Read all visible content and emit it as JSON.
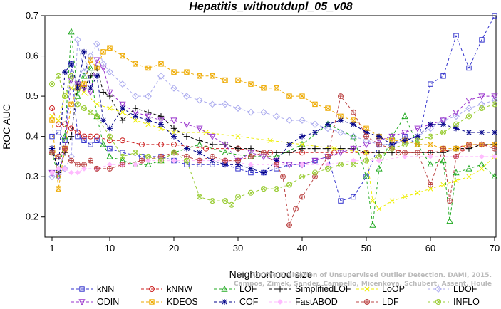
{
  "chart_data": {
    "type": "line",
    "title": "Hepatitis_withoutdupl_05_v08",
    "xlabel": "Neighborhood size",
    "ylabel": "ROC AUC",
    "xlim": [
      1,
      70
    ],
    "ylim": [
      0.15,
      0.7
    ],
    "xticks": [
      1,
      10,
      20,
      30,
      40,
      50,
      60,
      70
    ],
    "yticks": [
      0.2,
      0.3,
      0.4,
      0.5,
      0.6,
      0.7
    ],
    "grid": false,
    "legend_position": "bottom",
    "credit": [
      "Campos, Zimek, Sander, Campello, Micenkova, Schubert, Assent, Houle",
      "On the Evaluation of Unsupervised Outlier Detection. DAMI, 2015."
    ],
    "series": [
      {
        "name": "kNN",
        "color": "#3333cc",
        "marker": "square",
        "x": [
          1,
          2,
          3,
          4,
          5,
          6,
          7,
          8,
          10,
          12,
          15,
          18,
          20,
          22,
          24,
          26,
          28,
          30,
          32,
          34,
          36,
          38,
          40,
          42,
          44,
          46,
          48,
          50,
          52,
          54,
          56,
          58,
          60,
          62,
          64,
          66,
          68,
          70
        ],
        "y": [
          0.4,
          0.41,
          0.39,
          0.58,
          0.4,
          0.39,
          0.38,
          0.39,
          0.37,
          0.36,
          0.35,
          0.35,
          0.34,
          0.33,
          0.33,
          0.33,
          0.33,
          0.32,
          0.31,
          0.31,
          0.32,
          0.33,
          0.33,
          0.34,
          0.35,
          0.24,
          0.25,
          0.3,
          0.38,
          0.38,
          0.4,
          0.38,
          0.53,
          0.55,
          0.65,
          0.57,
          0.64,
          0.7
        ]
      },
      {
        "name": "kNNW",
        "color": "#cc2222",
        "marker": "circle",
        "x": [
          1,
          2,
          3,
          4,
          5,
          6,
          7,
          8,
          10,
          12,
          15,
          18,
          20,
          25,
          30,
          35,
          40,
          45,
          50,
          55,
          60,
          65,
          70
        ],
        "y": [
          0.47,
          0.43,
          0.43,
          0.42,
          0.41,
          0.4,
          0.4,
          0.4,
          0.39,
          0.39,
          0.38,
          0.38,
          0.38,
          0.37,
          0.37,
          0.36,
          0.36,
          0.36,
          0.36,
          0.36,
          0.36,
          0.37,
          0.38
        ]
      },
      {
        "name": "LOF",
        "color": "#22aa22",
        "marker": "triangle-up",
        "x": [
          1,
          2,
          3,
          4,
          5,
          6,
          7,
          8,
          9,
          10,
          12,
          14,
          16,
          18,
          20,
          24,
          28,
          32,
          36,
          40,
          44,
          48,
          50,
          51,
          52,
          54,
          56,
          58,
          60,
          62,
          63,
          64,
          66,
          68,
          70
        ],
        "y": [
          0.36,
          0.3,
          0.4,
          0.66,
          0.5,
          0.55,
          0.57,
          0.45,
          0.38,
          0.35,
          0.34,
          0.33,
          0.33,
          0.34,
          0.36,
          0.38,
          0.36,
          0.35,
          0.35,
          0.38,
          0.43,
          0.4,
          0.3,
          0.18,
          0.32,
          0.4,
          0.45,
          0.38,
          0.33,
          0.34,
          0.19,
          0.31,
          0.32,
          0.33,
          0.3
        ]
      },
      {
        "name": "SimplifiedLOF",
        "color": "#000000",
        "marker": "plus",
        "x": [
          1,
          2,
          3,
          4,
          5,
          6,
          7,
          8,
          9,
          10,
          12,
          14,
          16,
          18,
          20,
          22,
          24,
          26,
          28,
          30,
          32,
          34,
          36,
          38,
          40,
          42,
          44,
          46,
          48,
          50,
          52,
          54,
          56,
          58,
          60,
          62,
          64,
          66,
          68,
          70
        ],
        "y": [
          0.37,
          0.31,
          0.36,
          0.4,
          0.53,
          0.52,
          0.55,
          0.57,
          0.51,
          0.5,
          0.44,
          0.47,
          0.46,
          0.45,
          0.42,
          0.4,
          0.39,
          0.38,
          0.38,
          0.37,
          0.37,
          0.36,
          0.36,
          0.36,
          0.37,
          0.37,
          0.37,
          0.37,
          0.37,
          0.36,
          0.36,
          0.36,
          0.36,
          0.36,
          0.36,
          0.36,
          0.37,
          0.37,
          0.38,
          0.38
        ]
      },
      {
        "name": "LoOP",
        "color": "#eeee00",
        "marker": "cross",
        "x": [
          1,
          2,
          3,
          4,
          5,
          6,
          8,
          10,
          12,
          14,
          16,
          18,
          20,
          25,
          30,
          35,
          40,
          45,
          50,
          51,
          52,
          54,
          56,
          58,
          60,
          62,
          64,
          66,
          68,
          70
        ],
        "y": [
          0.45,
          0.44,
          0.5,
          0.52,
          0.52,
          0.51,
          0.48,
          0.47,
          0.46,
          0.44,
          0.43,
          0.42,
          0.41,
          0.41,
          0.4,
          0.39,
          0.38,
          0.37,
          0.36,
          0.24,
          0.22,
          0.24,
          0.25,
          0.26,
          0.27,
          0.28,
          0.29,
          0.3,
          0.32,
          0.35
        ]
      },
      {
        "name": "LDOF",
        "color": "#aaaaee",
        "marker": "diamond",
        "x": [
          1,
          2,
          3,
          4,
          5,
          6,
          7,
          8,
          9,
          10,
          12,
          14,
          16,
          18,
          20,
          22,
          24,
          26,
          28,
          30,
          32,
          34,
          36,
          38,
          40,
          42,
          44,
          46,
          48,
          50,
          52,
          54,
          56,
          58,
          60,
          62,
          64,
          66,
          68,
          70
        ],
        "y": [
          0.3,
          0.31,
          0.32,
          0.35,
          0.64,
          0.56,
          0.6,
          0.63,
          0.58,
          0.56,
          0.53,
          0.5,
          0.5,
          0.55,
          0.52,
          0.5,
          0.49,
          0.48,
          0.48,
          0.47,
          0.46,
          0.46,
          0.45,
          0.44,
          0.44,
          0.43,
          0.42,
          0.41,
          0.4,
          0.39,
          0.38,
          0.38,
          0.39,
          0.4,
          0.42,
          0.44,
          0.45,
          0.47,
          0.48,
          0.49
        ]
      },
      {
        "name": "ODIN",
        "color": "#9933cc",
        "marker": "triangle-down",
        "x": [
          1,
          2,
          3,
          4,
          5,
          6,
          7,
          8,
          9,
          10,
          12,
          14,
          16,
          18,
          20,
          22,
          24,
          26,
          28,
          30,
          32,
          34,
          36,
          38,
          40,
          42,
          44,
          46,
          48,
          50,
          52,
          54,
          56,
          58,
          60,
          62,
          64,
          66,
          68,
          70
        ],
        "y": [
          0.31,
          0.3,
          0.37,
          0.54,
          0.53,
          0.52,
          0.51,
          0.59,
          0.57,
          0.51,
          0.48,
          0.46,
          0.45,
          0.44,
          0.44,
          0.43,
          0.42,
          0.4,
          0.38,
          0.34,
          0.36,
          0.35,
          0.34,
          0.33,
          0.33,
          0.34,
          0.35,
          0.36,
          0.37,
          0.38,
          0.39,
          0.4,
          0.41,
          0.42,
          0.43,
          0.44,
          0.46,
          0.49,
          0.5,
          0.5
        ]
      },
      {
        "name": "KDEOS",
        "color": "#eeaa00",
        "marker": "square-x",
        "x": [
          1,
          2,
          3,
          4,
          5,
          6,
          7,
          8,
          9,
          10,
          12,
          14,
          16,
          18,
          20,
          22,
          24,
          26,
          28,
          30,
          32,
          34,
          36,
          38,
          40,
          42,
          44,
          46,
          48,
          50,
          52,
          54,
          56,
          58,
          60,
          62,
          64,
          66,
          68,
          70
        ],
        "y": [
          0.44,
          0.27,
          0.37,
          0.48,
          0.52,
          0.53,
          0.59,
          0.57,
          0.61,
          0.62,
          0.6,
          0.58,
          0.57,
          0.58,
          0.56,
          0.56,
          0.55,
          0.55,
          0.54,
          0.54,
          0.53,
          0.52,
          0.52,
          0.5,
          0.5,
          0.48,
          0.47,
          0.45,
          0.44,
          0.42,
          0.4,
          0.39,
          0.39,
          0.38,
          0.38,
          0.37,
          0.37,
          0.38,
          0.38,
          0.38
        ]
      },
      {
        "name": "COF",
        "color": "#000088",
        "marker": "star",
        "x": [
          1,
          2,
          3,
          4,
          5,
          6,
          7,
          8,
          9,
          10,
          12,
          14,
          16,
          18,
          20,
          22,
          24,
          26,
          28,
          30,
          32,
          34,
          36,
          38,
          40,
          42,
          44,
          46,
          48,
          50,
          52,
          54,
          56,
          58,
          60,
          62,
          64,
          66,
          68,
          70
        ],
        "y": [
          0.37,
          0.32,
          0.56,
          0.58,
          0.52,
          0.61,
          0.52,
          0.55,
          0.44,
          0.42,
          0.47,
          0.45,
          0.44,
          0.43,
          0.4,
          0.37,
          0.36,
          0.34,
          0.33,
          0.33,
          0.32,
          0.31,
          0.34,
          0.38,
          0.4,
          0.41,
          0.43,
          0.44,
          0.43,
          0.41,
          0.4,
          0.38,
          0.39,
          0.4,
          0.43,
          0.43,
          0.42,
          0.41,
          0.41,
          0.41
        ]
      },
      {
        "name": "FastABOD",
        "color": "#ffbbff",
        "marker": "diamond-filled",
        "x": [
          1,
          2,
          3,
          4,
          5,
          6,
          8,
          10,
          12,
          14,
          16,
          18,
          20,
          24,
          28,
          32,
          36,
          40,
          44,
          48,
          52,
          56,
          60,
          64,
          68,
          70
        ],
        "y": [
          0.31,
          0.32,
          0.32,
          0.31,
          0.31,
          0.32,
          0.32,
          0.33,
          0.33,
          0.33,
          0.34,
          0.34,
          0.34,
          0.34,
          0.34,
          0.33,
          0.33,
          0.33,
          0.33,
          0.34,
          0.34,
          0.35,
          0.35,
          0.35,
          0.35,
          0.35
        ]
      },
      {
        "name": "LDF",
        "color": "#bb4444",
        "marker": "circle-plus",
        "x": [
          1,
          2,
          3,
          4,
          5,
          6,
          7,
          8,
          10,
          12,
          15,
          18,
          20,
          22,
          24,
          26,
          28,
          30,
          32,
          34,
          36,
          37,
          38,
          39,
          40,
          42,
          44,
          46,
          48,
          50,
          52,
          54,
          56,
          58,
          60,
          62,
          63,
          64,
          66,
          68,
          70
        ],
        "y": [
          0.36,
          0.35,
          0.37,
          0.34,
          0.33,
          0.33,
          0.34,
          0.32,
          0.32,
          0.33,
          0.34,
          0.35,
          0.36,
          0.35,
          0.34,
          0.35,
          0.34,
          0.34,
          0.35,
          0.36,
          0.33,
          0.3,
          0.18,
          0.22,
          0.25,
          0.3,
          0.35,
          0.5,
          0.46,
          0.4,
          0.38,
          0.37,
          0.36,
          0.36,
          0.28,
          0.37,
          0.24,
          0.35,
          0.38,
          0.38,
          0.37
        ]
      },
      {
        "name": "INFLO",
        "color": "#99cc33",
        "marker": "circle-x",
        "x": [
          1,
          2,
          3,
          4,
          5,
          6,
          7,
          8,
          10,
          12,
          14,
          16,
          18,
          20,
          22,
          24,
          26,
          28,
          29,
          30,
          32,
          34,
          36,
          38,
          40,
          42,
          44,
          46,
          48,
          50,
          52,
          54,
          56,
          58,
          60,
          62,
          64,
          66,
          68,
          70
        ],
        "y": [
          0.53,
          0.55,
          0.5,
          0.55,
          0.48,
          0.47,
          0.46,
          0.45,
          0.4,
          0.35,
          0.36,
          0.35,
          0.34,
          0.36,
          0.34,
          0.25,
          0.24,
          0.24,
          0.23,
          0.25,
          0.26,
          0.27,
          0.27,
          0.28,
          0.3,
          0.31,
          0.32,
          0.33,
          0.33,
          0.34,
          0.35,
          0.37,
          0.38,
          0.39,
          0.4,
          0.41,
          0.43,
          0.45,
          0.47,
          0.48
        ]
      }
    ]
  }
}
